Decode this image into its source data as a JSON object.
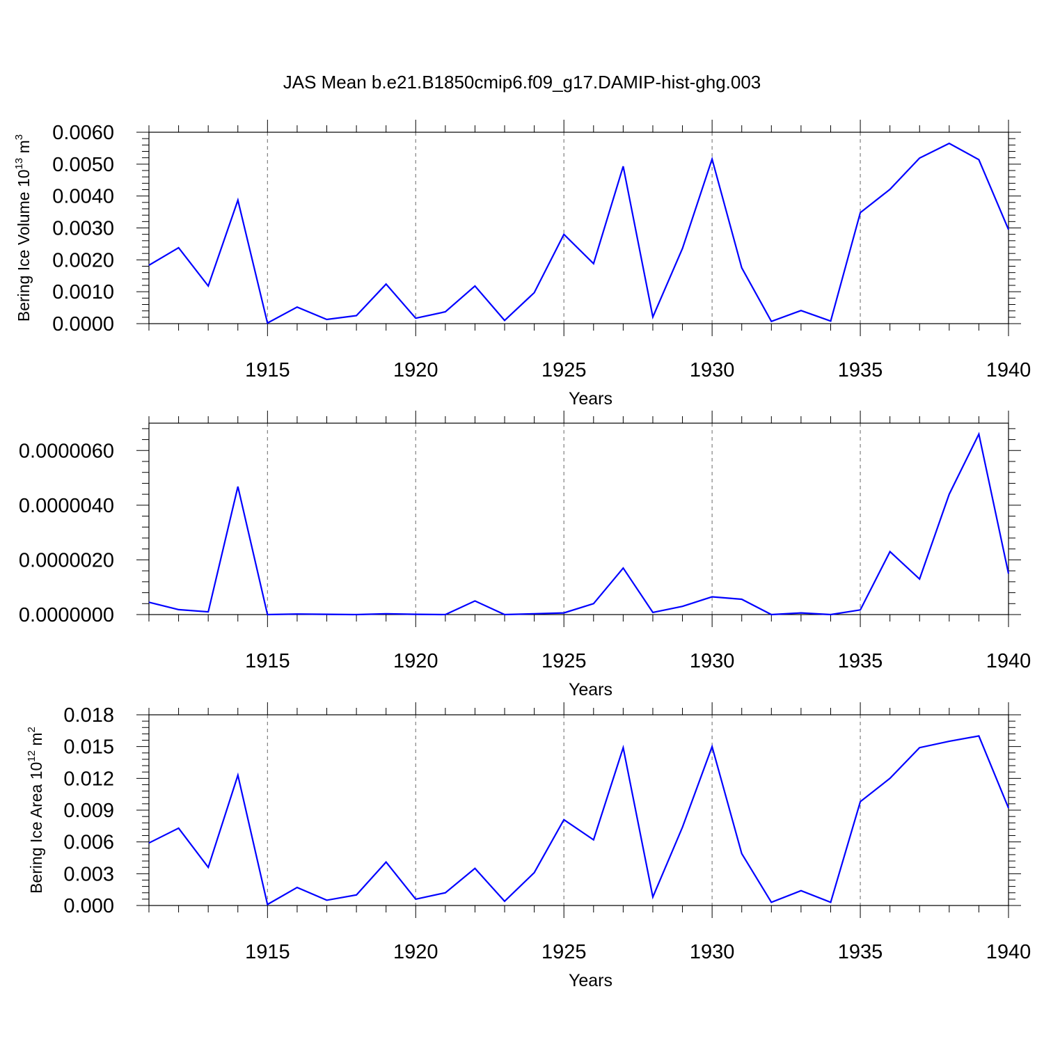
{
  "title": "JAS Mean b.e21.B1850cmip6.f09_g17.DAMIP-hist-ghg.003",
  "colors": {
    "line": "#0000ff",
    "axis": "#000000",
    "grid": "#808080"
  },
  "chart_data": [
    {
      "type": "line",
      "xlabel": "Years",
      "ylabel": {
        "text": "Bering Ice Volume 10",
        "sup": "13",
        "unit": "m",
        "unit_sup": "3"
      },
      "xlim": [
        1911,
        1940
      ],
      "ylim": [
        0,
        0.006
      ],
      "xticks": [
        1915,
        1920,
        1925,
        1930,
        1935,
        1940
      ],
      "yticks": [
        0,
        0.001,
        0.002,
        0.003,
        0.004,
        0.005,
        0.006
      ],
      "ytick_labels": [
        "0.0000",
        "0.0010",
        "0.0020",
        "0.0030",
        "0.0040",
        "0.0050",
        "0.0060"
      ],
      "x": [
        1911,
        1912,
        1913,
        1914,
        1915,
        1916,
        1917,
        1918,
        1919,
        1920,
        1921,
        1922,
        1923,
        1924,
        1925,
        1926,
        1927,
        1928,
        1929,
        1930,
        1931,
        1932,
        1933,
        1934,
        1935,
        1936,
        1937,
        1938,
        1939,
        1940
      ],
      "values": [
        0.00183,
        0.00238,
        0.00118,
        0.00387,
        2e-05,
        0.00052,
        0.00013,
        0.00025,
        0.00124,
        0.00017,
        0.00037,
        0.00118,
        0.0001,
        0.00097,
        0.0028,
        0.00188,
        0.00493,
        0.00021,
        0.00236,
        0.00516,
        0.00175,
        7e-05,
        0.00041,
        8e-05,
        0.00348,
        0.00421,
        0.00519,
        0.00565,
        0.00514,
        0.00295
      ]
    },
    {
      "type": "line",
      "xlabel": "Years",
      "ylabel": null,
      "xlim": [
        1911,
        1940
      ],
      "ylim": [
        0,
        7e-06
      ],
      "xticks": [
        1915,
        1920,
        1925,
        1930,
        1935,
        1940
      ],
      "yticks": [
        0,
        2e-06,
        4e-06,
        6e-06
      ],
      "ytick_labels": [
        "0.0000000",
        "0.0000020",
        "0.0000040",
        "0.0000060"
      ],
      "x": [
        1911,
        1912,
        1913,
        1914,
        1915,
        1916,
        1917,
        1918,
        1919,
        1920,
        1921,
        1922,
        1923,
        1924,
        1925,
        1926,
        1927,
        1928,
        1929,
        1930,
        1931,
        1932,
        1933,
        1934,
        1935,
        1936,
        1937,
        1938,
        1939,
        1940
      ],
      "values": [
        4.5e-07,
        1.8e-07,
        1e-07,
        4.68e-06,
        0.0,
        2e-08,
        1e-08,
        0.0,
        3e-08,
        1e-08,
        0.0,
        5e-07,
        0.0,
        3e-08,
        6e-08,
        4e-07,
        1.7e-06,
        8e-08,
        3e-07,
        6.5e-07,
        5.6e-07,
        0.0,
        6e-08,
        0.0,
        1.7e-07,
        2.3e-06,
        1.3e-06,
        4.4e-06,
        6.6e-06,
        1.5e-06
      ]
    },
    {
      "type": "line",
      "xlabel": "Years",
      "ylabel": {
        "text": "Bering Ice Area 10",
        "sup": "12",
        "unit": "m",
        "unit_sup": "2"
      },
      "xlim": [
        1911,
        1940
      ],
      "ylim": [
        0,
        0.018
      ],
      "xticks": [
        1915,
        1920,
        1925,
        1930,
        1935,
        1940
      ],
      "yticks": [
        0,
        0.003,
        0.006,
        0.009,
        0.012,
        0.015,
        0.018
      ],
      "ytick_labels": [
        "0.000",
        "0.003",
        "0.006",
        "0.009",
        "0.012",
        "0.015",
        "0.018"
      ],
      "x": [
        1911,
        1912,
        1913,
        1914,
        1915,
        1916,
        1917,
        1918,
        1919,
        1920,
        1921,
        1922,
        1923,
        1924,
        1925,
        1926,
        1927,
        1928,
        1929,
        1930,
        1931,
        1932,
        1933,
        1934,
        1935,
        1936,
        1937,
        1938,
        1939,
        1940
      ],
      "values": [
        0.0059,
        0.0073,
        0.0036,
        0.0123,
        0.0001,
        0.0017,
        0.0005,
        0.001,
        0.0041,
        0.0006,
        0.0012,
        0.0035,
        0.0004,
        0.0031,
        0.0081,
        0.0062,
        0.0149,
        0.0008,
        0.0074,
        0.015,
        0.0049,
        0.0003,
        0.0014,
        0.0003,
        0.0098,
        0.012,
        0.0149,
        0.0155,
        0.016,
        0.0092
      ]
    }
  ]
}
